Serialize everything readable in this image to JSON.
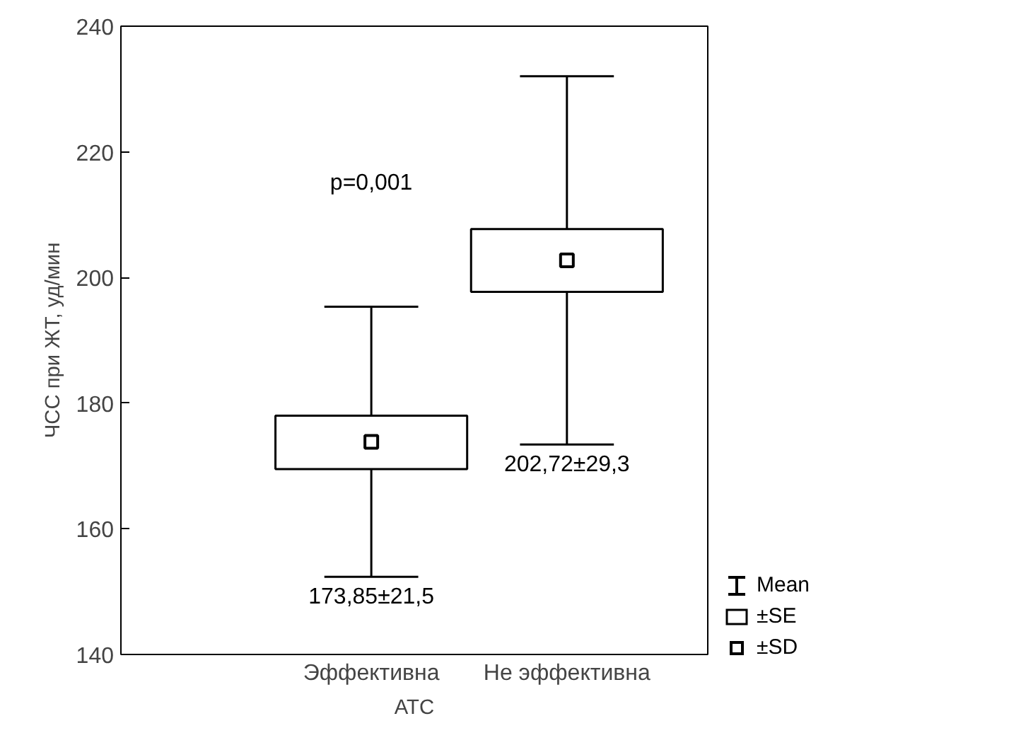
{
  "chart_data": {
    "type": "box",
    "xlabel": "АТС",
    "ylabel": "ЧСС при ЖТ, уд/мин",
    "categories": [
      "Эффективна",
      "Не эффективна"
    ],
    "boxes": [
      {
        "low": 152.35,
        "q1": 169.5,
        "median": 173.85,
        "q3": 178,
        "high": 195.35
      },
      {
        "low": 173.42,
        "q1": 197.7,
        "median": 202.72,
        "q3": 207.7,
        "high": 232.02
      }
    ],
    "ylim": [
      140,
      240
    ],
    "yticks": [
      140,
      160,
      180,
      200,
      220,
      240
    ],
    "grid": false,
    "annotations": [
      "p=0,001",
      {
        "text": "173,85±21,5",
        "x": "Эффективна",
        "y": 152.35
      },
      {
        "text": "202,72±29,3",
        "x": "Не эффективна",
        "y": 173.42
      },
      "Mean",
      "±SE",
      "±SD"
    ]
  }
}
